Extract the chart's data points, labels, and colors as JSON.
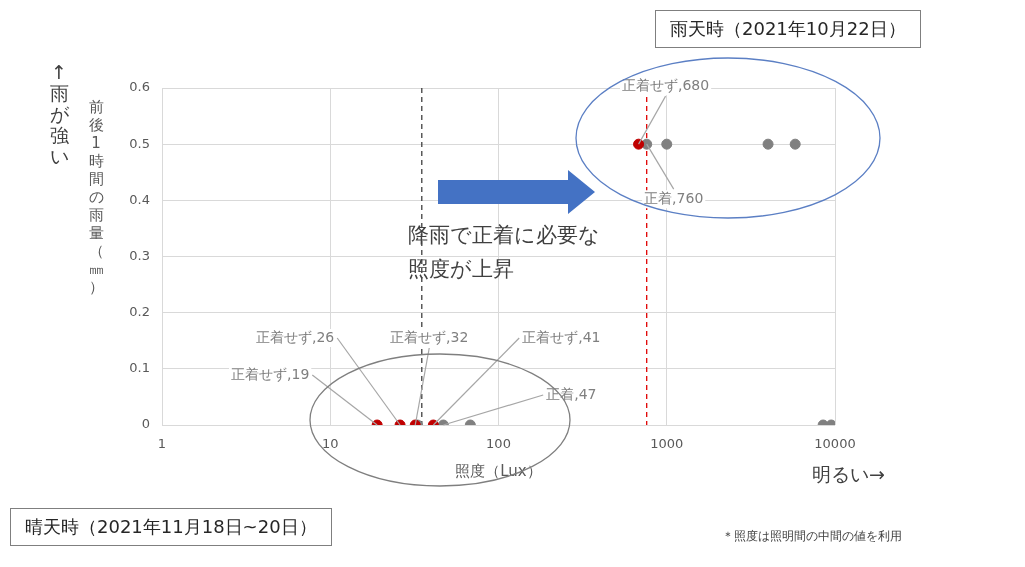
{
  "chart_data": {
    "type": "scatter",
    "xlabel": "照度（Lux）",
    "ylabel": "前後1時間の雨量（㎜）",
    "log": "x",
    "xlim": [
      1,
      10000
    ],
    "xticks": [
      1,
      10,
      100,
      1000,
      10000
    ],
    "ylim": [
      0,
      0.6
    ],
    "yticks": [
      0,
      0.1,
      0.2,
      0.3,
      0.4,
      0.5,
      0.6
    ],
    "grid": true,
    "marker": "circle",
    "series": [
      {
        "color": "#c00000",
        "x": [
          19,
          26,
          32,
          41,
          680
        ],
        "values": [
          0,
          0,
          0,
          0,
          0.5
        ]
      },
      {
        "color": "#808080",
        "x": [
          33,
          47,
          68,
          8500,
          9500,
          760,
          1000,
          4000,
          5800
        ],
        "values": [
          0,
          0,
          0,
          0,
          0,
          0.5,
          0.5,
          0.5,
          0.5
        ]
      }
    ],
    "ref_lines": [
      {
        "axis": "x",
        "value": 35,
        "color": "#404040",
        "line_style": "dashed"
      },
      {
        "axis": "x",
        "value": 760,
        "color": "#e00000",
        "line_style": "dashed"
      }
    ],
    "annotations": [
      "雨天時（2021年10月22日）",
      "晴天時（2021年11月18日~20日）",
      "降雨で正着に必要な照度が上昇",
      "↑雨が強い",
      "明るい→",
      "＊照度は照明間の中間の値を利用",
      {
        "text": "正着せず,19",
        "x": 19,
        "y": 0
      },
      {
        "text": "正着せず,26",
        "x": 26,
        "y": 0
      },
      {
        "text": "正着せず,32",
        "x": 32,
        "y": 0
      },
      {
        "text": "正着せず,41",
        "x": 41,
        "y": 0
      },
      {
        "text": "正着,47",
        "x": 47,
        "y": 0
      },
      {
        "text": "正着せず,680",
        "x": 680,
        "y": 0.5
      },
      {
        "text": "正着,760",
        "x": 760,
        "y": 0.5
      }
    ]
  }
}
